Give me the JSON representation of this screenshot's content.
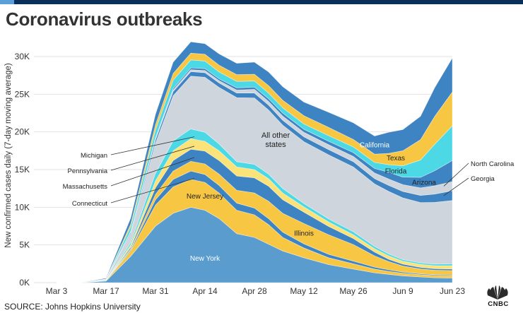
{
  "header": {
    "title": "Coronavirus outbreaks"
  },
  "source": "SOURCE: Johns Hopkins University",
  "logo": {
    "text": "CNBC"
  },
  "colors": {
    "blue": "#5b9ccf",
    "gold": "#f7c744",
    "cyan": "#4dd8e6",
    "other_states": "#cfd5dc",
    "dark_blue": "#3f84c2",
    "light_yellow": "#fbe37a",
    "topbar": "#0b2f5b"
  },
  "chart_data": {
    "type": "area",
    "stacked": true,
    "ylabel": "New confirmed cases daily (7-day moving average)",
    "ylim": [
      0,
      32000
    ],
    "yticks": [
      0,
      5000,
      10000,
      15000,
      20000,
      25000,
      30000
    ],
    "ytick_labels": [
      "0K",
      "5K",
      "10K",
      "15K",
      "20K",
      "25K",
      "30K"
    ],
    "xticks": [
      "Mar 3",
      "Mar 17",
      "Mar 31",
      "Apr 14",
      "Apr 28",
      "May 12",
      "May 26",
      "Jun 9",
      "Jun 23"
    ],
    "x": [
      "Mar 3",
      "Mar 10",
      "Mar 17",
      "Mar 24",
      "Mar 31",
      "Apr 5",
      "Apr 10",
      "Apr 14",
      "Apr 18",
      "Apr 23",
      "Apr 28",
      "May 2",
      "May 6",
      "May 12",
      "May 19",
      "May 26",
      "Jun 1",
      "Jun 5",
      "Jun 9",
      "Jun 14",
      "Jun 18",
      "Jun 23"
    ],
    "series": [
      {
        "name": "New York",
        "color": "#5b9ccf",
        "label_shown": "New York",
        "values": [
          0,
          0,
          200,
          3500,
          7500,
          9200,
          10000,
          9600,
          8500,
          6500,
          6000,
          5100,
          4200,
          3300,
          2400,
          1800,
          1300,
          1100,
          900,
          750,
          650,
          600
        ]
      },
      {
        "name": "New Jersey",
        "color": "#f7c744",
        "label_shown": "New Jersey",
        "values": [
          0,
          0,
          50,
          700,
          2800,
          3500,
          3700,
          3700,
          3400,
          3100,
          3000,
          2600,
          1800,
          1300,
          900,
          700,
          500,
          400,
          350,
          300,
          300,
          300
        ]
      },
      {
        "name": "Connecticut",
        "color": "#3f84c2",
        "label_shown": "",
        "values": [
          0,
          0,
          10,
          150,
          700,
          1000,
          1100,
          1050,
          1000,
          950,
          900,
          800,
          700,
          550,
          450,
          350,
          250,
          200,
          150,
          120,
          100,
          100
        ]
      },
      {
        "name": "Illinois",
        "color": "#f7c744",
        "label_shown": "Illinois",
        "values": [
          0,
          0,
          20,
          150,
          700,
          1100,
          1300,
          1400,
          1500,
          1700,
          2000,
          2300,
          2500,
          2700,
          2600,
          2200,
          1500,
          1100,
          800,
          650,
          600,
          600
        ]
      },
      {
        "name": "Massachusetts",
        "color": "#3f84c2",
        "label_shown": "",
        "values": [
          0,
          0,
          20,
          200,
          900,
          1400,
          1600,
          1700,
          1800,
          1900,
          2000,
          2000,
          1800,
          1500,
          1100,
          800,
          500,
          300,
          250,
          200,
          200,
          200
        ]
      },
      {
        "name": "Pennsylvania",
        "color": "#fbe37a",
        "label_shown": "",
        "values": [
          0,
          0,
          10,
          300,
          900,
          1300,
          1400,
          1300,
          1300,
          1200,
          1100,
          1000,
          900,
          700,
          600,
          500,
          450,
          450,
          400,
          400,
          400,
          450
        ]
      },
      {
        "name": "Michigan",
        "color": "#4dd8e6",
        "label_shown": "",
        "values": [
          0,
          0,
          5,
          300,
          1000,
          1300,
          1300,
          1200,
          900,
          700,
          700,
          600,
          600,
          450,
          400,
          400,
          300,
          250,
          200,
          200,
          200,
          250
        ]
      },
      {
        "name": "All other states",
        "color": "#cfd5dc",
        "label_shown": "All other states",
        "values": [
          0,
          0,
          100,
          1200,
          4000,
          6000,
          7000,
          7300,
          7500,
          8500,
          8800,
          8500,
          8400,
          8200,
          8500,
          8600,
          8300,
          8300,
          8200,
          8000,
          8200,
          8400
        ]
      },
      {
        "name": "Georgia",
        "color": "#3f84c2",
        "label_shown": "Georgia",
        "values": [
          0,
          0,
          20,
          200,
          450,
          550,
          600,
          600,
          600,
          600,
          650,
          650,
          650,
          650,
          700,
          700,
          700,
          800,
          850,
          950,
          1100,
          1300
        ]
      },
      {
        "name": "North Carolina",
        "color": "#cfd5dc",
        "label_shown": "North Carolina",
        "values": [
          0,
          0,
          10,
          80,
          150,
          200,
          250,
          300,
          300,
          400,
          500,
          500,
          550,
          600,
          650,
          700,
          750,
          850,
          900,
          1000,
          1100,
          1200
        ]
      },
      {
        "name": "Arizona",
        "color": "#3f84c2",
        "label_shown": "Arizona",
        "values": [
          0,
          0,
          5,
          50,
          150,
          200,
          250,
          250,
          250,
          300,
          300,
          350,
          400,
          400,
          450,
          500,
          600,
          900,
          1000,
          1400,
          2000,
          2800
        ]
      },
      {
        "name": "Florida",
        "color": "#4dd8e6",
        "label_shown": "Florida",
        "values": [
          0,
          0,
          30,
          600,
          1000,
          1100,
          1050,
          1000,
          900,
          850,
          800,
          750,
          700,
          700,
          750,
          750,
          800,
          1000,
          1500,
          2300,
          3500,
          4600
        ]
      },
      {
        "name": "Texas",
        "color": "#f7c744",
        "label_shown": "Texas",
        "values": [
          0,
          0,
          20,
          350,
          700,
          900,
          900,
          900,
          900,
          900,
          900,
          1000,
          1000,
          1100,
          1100,
          1000,
          1100,
          1500,
          2000,
          2700,
          3700,
          4500
        ]
      },
      {
        "name": "California",
        "color": "#3f84c2",
        "label_shown": "California",
        "values": [
          0,
          0,
          100,
          800,
          1400,
          1500,
          1500,
          1400,
          1500,
          1500,
          1600,
          1800,
          1800,
          1800,
          2000,
          2200,
          2400,
          2800,
          2800,
          3100,
          3800,
          4500
        ]
      }
    ],
    "annotations": [
      "Michigan",
      "Pennsylvania",
      "Massachusetts",
      "Connecticut",
      "North Carolina",
      "Georgia"
    ]
  }
}
